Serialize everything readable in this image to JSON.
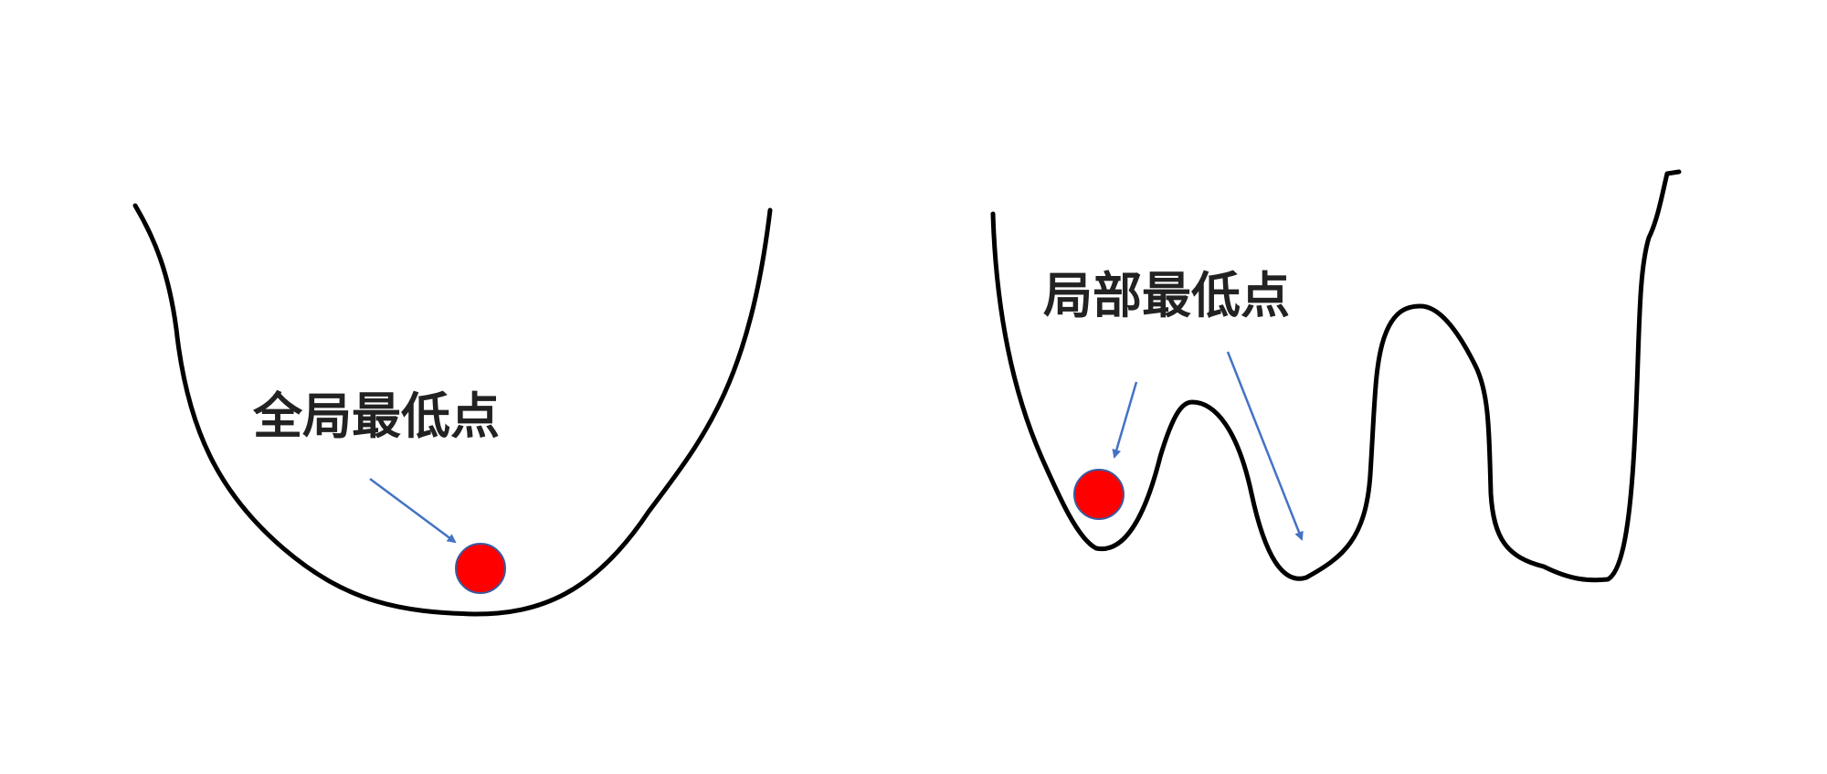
{
  "left_panel": {
    "label": "全局最低点"
  },
  "right_panel": {
    "label": "局部最低点"
  },
  "colors": {
    "curve": "#000000",
    "arrow": "#4472C4",
    "ball_fill": "#FF0000",
    "ball_stroke": "#3A5BA0",
    "label_text": "#222222"
  }
}
